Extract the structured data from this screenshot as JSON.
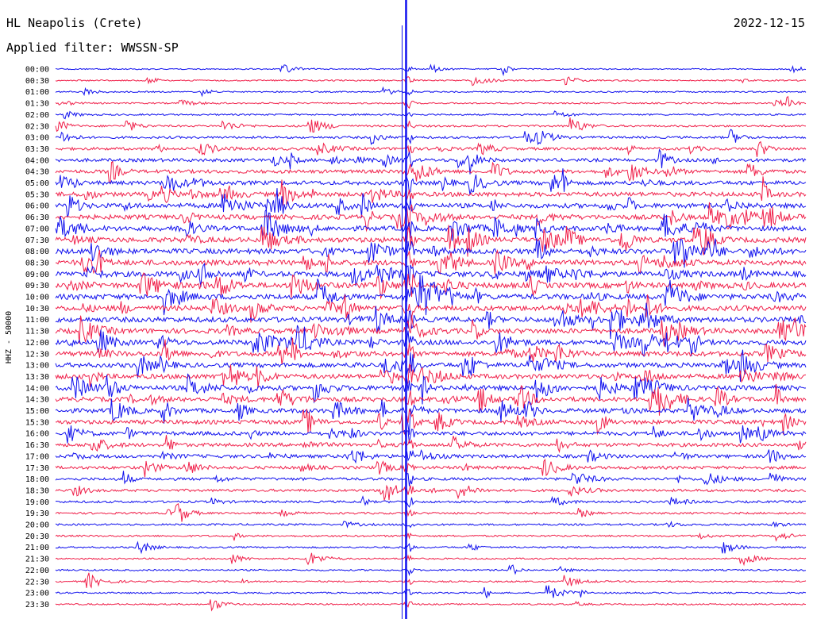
{
  "header": {
    "station": "HL Neapolis (Crete)",
    "date": "2022-12-15",
    "filter": "Applied filter: WWSSN-SP"
  },
  "colors": {
    "trace_a": "#1010ee",
    "trace_b": "#f0204a",
    "background": "#ffffff",
    "text": "#000000"
  },
  "chart_data": {
    "type": "line",
    "title": "HL Neapolis (Crete)",
    "subtitle": "Applied filter: WWSSN-SP",
    "ylabel": "HHZ - 50000",
    "xlabel": "",
    "grid": false,
    "legend": "none",
    "trace_colors_alternate": [
      "#1010ee",
      "#f0204a"
    ],
    "row_labels": [
      "00:00",
      "00:30",
      "01:00",
      "01:30",
      "02:00",
      "02:30",
      "03:00",
      "03:30",
      "04:00",
      "04:30",
      "05:00",
      "05:30",
      "06:00",
      "06:30",
      "07:00",
      "07:30",
      "08:00",
      "08:30",
      "09:00",
      "09:30",
      "10:00",
      "10:30",
      "11:00",
      "11:30",
      "12:00",
      "12:30",
      "13:00",
      "13:30",
      "14:00",
      "14:30",
      "15:00",
      "15:30",
      "16:00",
      "16:30",
      "17:00",
      "17:30",
      "18:00",
      "18:30",
      "19:00",
      "19:30",
      "20:00",
      "20:30",
      "21:00",
      "21:30",
      "22:00",
      "22:30",
      "23:00",
      "23:30"
    ],
    "activity_level": [
      0.05,
      0.08,
      0.08,
      0.1,
      0.12,
      0.18,
      0.25,
      0.35,
      0.45,
      0.5,
      0.6,
      0.65,
      0.7,
      0.72,
      0.75,
      0.78,
      0.8,
      0.82,
      0.82,
      0.85,
      0.85,
      0.82,
      0.8,
      0.78,
      0.75,
      0.72,
      0.7,
      0.7,
      0.72,
      0.7,
      0.65,
      0.6,
      0.55,
      0.5,
      0.45,
      0.4,
      0.35,
      0.3,
      0.25,
      0.2,
      0.18,
      0.16,
      0.14,
      0.12,
      0.12,
      0.12,
      0.12,
      0.1
    ],
    "x_minutes": [
      0,
      30
    ],
    "vertical_marker_minute": 14
  }
}
